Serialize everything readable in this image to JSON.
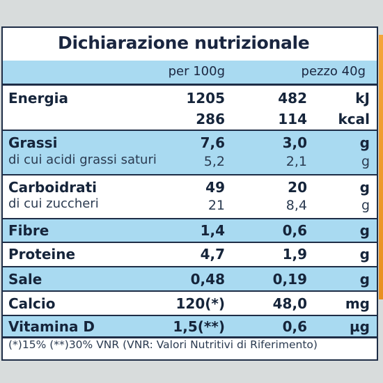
{
  "title": "Dichiarazione nutrizionale",
  "columns": {
    "per100": "per 100g",
    "piece": "pezzo 40g"
  },
  "rows": {
    "energia": {
      "name": "Energia",
      "v100_kj": "1205",
      "v40_kj": "482",
      "unit_kj": "kJ",
      "v100_kcal": "286",
      "v40_kcal": "114",
      "unit_kcal": "kcal"
    },
    "grassi": {
      "name": "Grassi",
      "v100": "7,6",
      "v40": "3,0",
      "unit": "g"
    },
    "saturi": {
      "name": "di cui acidi grassi saturi",
      "v100": "5,2",
      "v40": "2,1",
      "unit": "g"
    },
    "carboidrati": {
      "name": "Carboidrati",
      "v100": "49",
      "v40": "20",
      "unit": "g"
    },
    "zuccheri": {
      "name": "di cui zuccheri",
      "v100": "21",
      "v40": "8,4",
      "unit": "g"
    },
    "fibre": {
      "name": "Fibre",
      "v100": "1,4",
      "v40": "0,6",
      "unit": "g"
    },
    "proteine": {
      "name": "Proteine",
      "v100": "4,7",
      "v40": "1,9",
      "unit": "g"
    },
    "sale": {
      "name": "Sale",
      "v100": "0,48",
      "v40": "0,19",
      "unit": "g"
    },
    "calcio": {
      "name": "Calcio",
      "v100": "120(*)",
      "v40": "48,0",
      "unit": "mg"
    },
    "vitamina_d": {
      "name": "Vitamina D",
      "v100": "1,5(**)",
      "v40": "0,6",
      "unit": "µg"
    }
  },
  "footnote": "(*)15% (**)30% VNR (VNR: Valori Nutritivi di Riferimento)",
  "colors": {
    "band": "#a9daf1",
    "ink": "#15243a",
    "border": "#1e2d46"
  }
}
